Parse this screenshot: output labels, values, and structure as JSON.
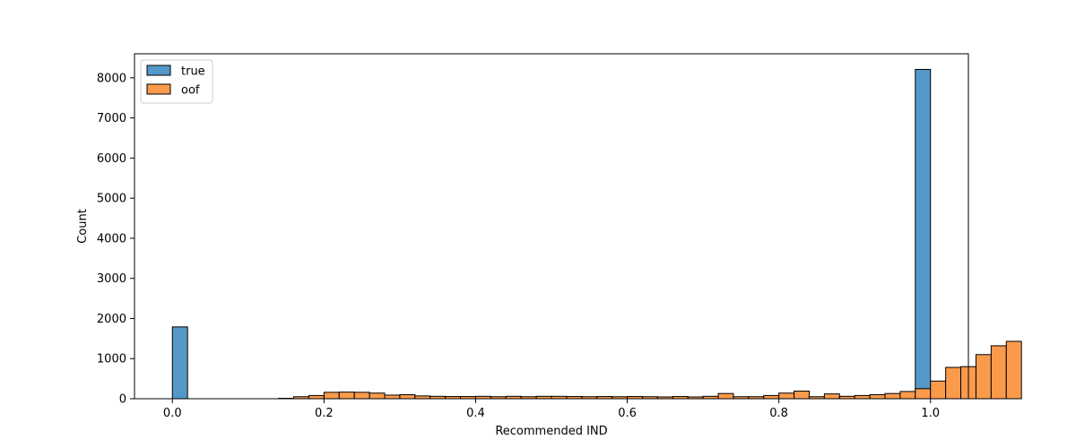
{
  "chart_data": {
    "type": "bar",
    "xlabel": "Recommended IND",
    "ylabel": "Count",
    "xlim": [
      -0.05,
      1.05
    ],
    "ylim": [
      0,
      8600
    ],
    "x_ticks": [
      "0.0",
      "0.2",
      "0.4",
      "0.6",
      "0.8",
      "1.0"
    ],
    "y_ticks": [
      "0",
      "1000",
      "2000",
      "3000",
      "4000",
      "5000",
      "6000",
      "7000",
      "8000"
    ],
    "legend_position": "upper left",
    "grid": false,
    "bin_width": 0.02,
    "series": [
      {
        "name": "true",
        "color": "#5498c8",
        "bins": [
          {
            "x0": 0.0,
            "x1": 0.02,
            "count": 1790
          },
          {
            "x0": 0.98,
            "x1": 1.0,
            "count": 8210
          }
        ]
      },
      {
        "name": "oof",
        "color": "#fa9b4c",
        "bin_start": 0.14,
        "counts": [
          10,
          50,
          80,
          160,
          165,
          160,
          140,
          90,
          100,
          70,
          60,
          55,
          55,
          60,
          50,
          60,
          50,
          60,
          60,
          55,
          50,
          55,
          50,
          55,
          50,
          45,
          55,
          45,
          60,
          130,
          50,
          50,
          80,
          140,
          190,
          50,
          120,
          60,
          80,
          100,
          130,
          180,
          250,
          440,
          780,
          800,
          1100,
          1320,
          1430
        ]
      }
    ]
  }
}
